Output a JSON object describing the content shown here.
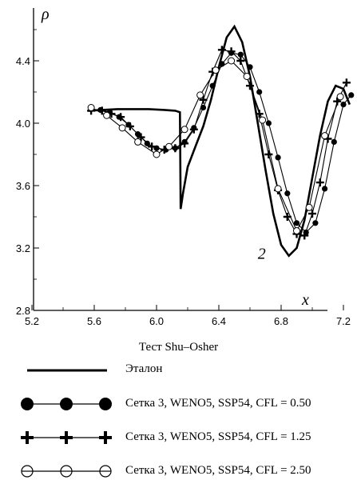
{
  "chart_data": {
    "type": "line",
    "title": "",
    "xlabel": "x",
    "ylabel": "ρ",
    "xlim": [
      5.2,
      7.8
    ],
    "ylim": [
      2.8,
      4.8
    ],
    "xticks": [
      5.2,
      5.6,
      6.0,
      6.4,
      6.8,
      7.2
    ],
    "yticks": [
      2.8,
      3.2,
      3.6,
      4.0,
      4.4
    ],
    "xtick_labels": [
      "5.2",
      "5.6",
      "6.0",
      "6.4",
      "6.8",
      "7.2"
    ],
    "ytick_labels": [
      "2.8",
      "3.2",
      "3.6",
      "4.0",
      "4.4"
    ],
    "annotation": "2",
    "annotation_pos": {
      "x": 6.65,
      "y": 3.13
    },
    "grid": false,
    "series": [
      {
        "name": "Эталон",
        "style": "thick-line",
        "x": [
          5.56,
          5.65,
          5.75,
          5.85,
          5.95,
          6.05,
          6.12,
          6.15,
          6.155,
          6.17,
          6.2,
          6.25,
          6.3,
          6.35,
          6.4,
          6.45,
          6.5,
          6.55,
          6.6,
          6.65,
          6.7,
          6.75,
          6.8,
          6.85,
          6.9,
          6.95,
          7.0,
          7.05,
          7.1,
          7.15,
          7.2,
          7.24
        ],
        "y": [
          4.08,
          4.085,
          4.09,
          4.09,
          4.09,
          4.085,
          4.08,
          4.07,
          3.45,
          3.55,
          3.72,
          3.85,
          3.98,
          4.15,
          4.36,
          4.55,
          4.62,
          4.52,
          4.3,
          4.0,
          3.7,
          3.42,
          3.22,
          3.15,
          3.2,
          3.38,
          3.65,
          3.92,
          4.14,
          4.24,
          4.22,
          4.12
        ]
      },
      {
        "name": "Сетка 3, WENO5, SSP54, CFL = 0.50",
        "style": "filled-circle",
        "x": [
          5.58,
          5.64,
          5.7,
          5.76,
          5.82,
          5.88,
          5.94,
          6.0,
          6.06,
          6.12,
          6.18,
          6.24,
          6.3,
          6.36,
          6.42,
          6.48,
          6.54,
          6.6,
          6.66,
          6.72,
          6.78,
          6.84,
          6.9,
          6.96,
          7.02,
          7.08,
          7.14,
          7.2,
          7.25
        ],
        "y": [
          4.09,
          4.085,
          4.07,
          4.04,
          3.99,
          3.93,
          3.87,
          3.84,
          3.83,
          3.84,
          3.88,
          3.97,
          4.1,
          4.24,
          4.38,
          4.45,
          4.44,
          4.36,
          4.2,
          4.0,
          3.78,
          3.55,
          3.36,
          3.3,
          3.36,
          3.58,
          3.88,
          4.12,
          4.18
        ]
      },
      {
        "name": "Сетка 3, WENO5, SSP54, CFL = 1.25",
        "style": "plus",
        "x": [
          5.58,
          5.65,
          5.71,
          5.77,
          5.83,
          5.9,
          5.97,
          6.05,
          6.12,
          6.18,
          6.24,
          6.3,
          6.36,
          6.42,
          6.48,
          6.54,
          6.6,
          6.66,
          6.72,
          6.78,
          6.84,
          6.9,
          6.95,
          7.0,
          7.05,
          7.1,
          7.16,
          7.22
        ],
        "y": [
          4.08,
          4.08,
          4.06,
          4.04,
          3.98,
          3.91,
          3.85,
          3.83,
          3.84,
          3.87,
          3.96,
          4.15,
          4.33,
          4.47,
          4.46,
          4.4,
          4.24,
          4.06,
          3.8,
          3.57,
          3.4,
          3.29,
          3.28,
          3.42,
          3.62,
          3.9,
          4.14,
          4.26
        ]
      },
      {
        "name": "Сетка 3, WENO5, SSP54, CFL = 2.50",
        "style": "open-circle",
        "x": [
          5.58,
          5.68,
          5.78,
          5.88,
          6.0,
          6.08,
          6.18,
          6.28,
          6.38,
          6.48,
          6.58,
          6.68,
          6.78,
          6.9,
          6.98,
          7.08,
          7.18
        ],
        "y": [
          4.1,
          4.05,
          3.97,
          3.88,
          3.8,
          3.85,
          3.96,
          4.18,
          4.34,
          4.4,
          4.3,
          4.02,
          3.58,
          3.31,
          3.46,
          3.92,
          4.17
        ]
      }
    ]
  },
  "caption": "Тест Shu–Osher",
  "legend": {
    "items": [
      {
        "label": "Эталон",
        "style": "thick-line"
      },
      {
        "label": "Сетка 3, WENO5, SSP54, CFL = 0.50",
        "style": "filled-circle"
      },
      {
        "label": "Сетка 3, WENO5, SSP54, CFL = 1.25",
        "style": "plus"
      },
      {
        "label": "Сетка 3, WENO5, SSP54, CFL = 2.50",
        "style": "open-circle"
      }
    ]
  }
}
